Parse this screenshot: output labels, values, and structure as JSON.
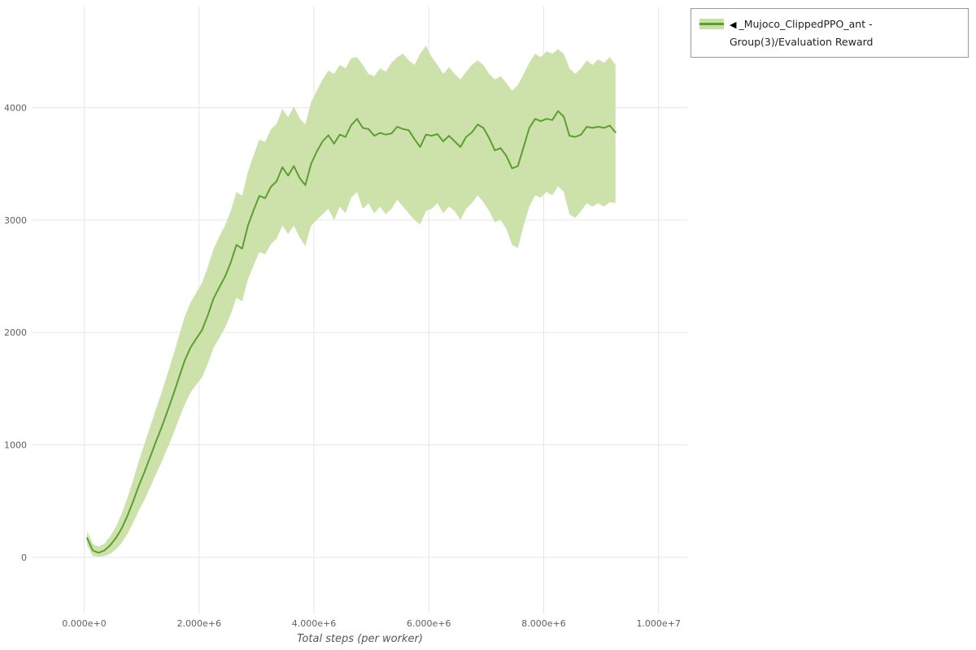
{
  "legend": {
    "collapse_icon": "◀",
    "label": "_Mujoco_ClippedPPO_ant - Group(3)/Evaluation Reward"
  },
  "chart_data": {
    "type": "line",
    "title": "",
    "xlabel": "Total steps (per worker)",
    "ylabel": "",
    "grid": true,
    "legend_position": "top-right-outside",
    "xlim": [
      -900000,
      10500000
    ],
    "ylim": [
      -500,
      4900
    ],
    "x_ticks": [
      {
        "value": 0,
        "label": "0.000e+0"
      },
      {
        "value": 2000000,
        "label": "2.000e+6"
      },
      {
        "value": 4000000,
        "label": "4.000e+6"
      },
      {
        "value": 6000000,
        "label": "6.000e+6"
      },
      {
        "value": 8000000,
        "label": "8.000e+6"
      },
      {
        "value": 10000000,
        "label": "1.000e+7"
      }
    ],
    "y_ticks": [
      {
        "value": 0,
        "label": "0"
      },
      {
        "value": 1000,
        "label": "1000"
      },
      {
        "value": 2000,
        "label": "2000"
      },
      {
        "value": 3000,
        "label": "3000"
      },
      {
        "value": 4000,
        "label": "4000"
      }
    ],
    "colors": {
      "line": "#5d9e33",
      "band": "#c9e0a5",
      "grid": "#e6e6e6",
      "tick_label": "#606060",
      "axis_title": "#555555",
      "legend_border": "#999999"
    },
    "series": [
      {
        "name": "_Mujoco_ClippedPPO_ant - Group(3)/Evaluation Reward",
        "color": "#5d9e33",
        "band_color": "#c9e0a5",
        "x": [
          50000,
          150000,
          250000,
          350000,
          450000,
          550000,
          650000,
          750000,
          850000,
          950000,
          1050000,
          1150000,
          1250000,
          1350000,
          1450000,
          1550000,
          1650000,
          1750000,
          1850000,
          1950000,
          2050000,
          2150000,
          2250000,
          2350000,
          2450000,
          2550000,
          2650000,
          2750000,
          2850000,
          2950000,
          3050000,
          3150000,
          3250000,
          3350000,
          3450000,
          3550000,
          3650000,
          3750000,
          3850000,
          3950000,
          4050000,
          4150000,
          4250000,
          4350000,
          4450000,
          4550000,
          4650000,
          4750000,
          4850000,
          4950000,
          5050000,
          5150000,
          5250000,
          5350000,
          5450000,
          5550000,
          5650000,
          5750000,
          5850000,
          5950000,
          6050000,
          6150000,
          6250000,
          6350000,
          6450000,
          6550000,
          6650000,
          6750000,
          6850000,
          6950000,
          7050000,
          7150000,
          7250000,
          7350000,
          7450000,
          7550000,
          7650000,
          7750000,
          7850000,
          7950000,
          8050000,
          8150000,
          8250000,
          8350000,
          8450000,
          8550000,
          8650000,
          8750000,
          8850000,
          8950000,
          9050000,
          9150000,
          9250000
        ],
        "mean": [
          170,
          60,
          40,
          60,
          105,
          170,
          255,
          365,
          495,
          635,
          760,
          895,
          1030,
          1160,
          1300,
          1445,
          1600,
          1750,
          1865,
          1945,
          2020,
          2150,
          2300,
          2400,
          2495,
          2620,
          2780,
          2745,
          2950,
          3090,
          3215,
          3195,
          3295,
          3345,
          3470,
          3395,
          3480,
          3375,
          3310,
          3500,
          3610,
          3700,
          3755,
          3680,
          3760,
          3740,
          3845,
          3900,
          3820,
          3810,
          3750,
          3775,
          3760,
          3770,
          3830,
          3810,
          3800,
          3720,
          3650,
          3760,
          3750,
          3765,
          3700,
          3750,
          3700,
          3650,
          3740,
          3780,
          3850,
          3820,
          3730,
          3620,
          3640,
          3570,
          3460,
          3480,
          3650,
          3820,
          3900,
          3880,
          3900,
          3890,
          3970,
          3920,
          3750,
          3740,
          3760,
          3830,
          3820,
          3830,
          3820,
          3840,
          3780
        ],
        "lower": [
          110,
          10,
          5,
          10,
          30,
          70,
          125,
          205,
          305,
          415,
          510,
          625,
          740,
          850,
          970,
          1095,
          1230,
          1360,
          1465,
          1535,
          1600,
          1720,
          1860,
          1950,
          2040,
          2160,
          2310,
          2275,
          2470,
          2600,
          2715,
          2695,
          2785,
          2835,
          2950,
          2875,
          2950,
          2845,
          2770,
          2950,
          3000,
          3050,
          3100,
          3000,
          3120,
          3060,
          3200,
          3250,
          3100,
          3150,
          3060,
          3120,
          3050,
          3100,
          3180,
          3120,
          3060,
          3000,
          2960,
          3080,
          3100,
          3150,
          3060,
          3120,
          3080,
          3000,
          3100,
          3150,
          3220,
          3160,
          3080,
          2980,
          3000,
          2920,
          2780,
          2750,
          2950,
          3120,
          3220,
          3200,
          3250,
          3220,
          3300,
          3250,
          3050,
          3020,
          3080,
          3150,
          3120,
          3150,
          3120,
          3160,
          3150
        ],
        "upper": [
          230,
          120,
          95,
          120,
          185,
          270,
          385,
          525,
          685,
          855,
          1010,
          1165,
          1320,
          1470,
          1630,
          1795,
          1970,
          2140,
          2265,
          2355,
          2440,
          2580,
          2740,
          2850,
          2950,
          3080,
          3250,
          3215,
          3430,
          3580,
          3715,
          3695,
          3805,
          3855,
          3990,
          3915,
          4010,
          3905,
          3850,
          4050,
          4150,
          4250,
          4330,
          4300,
          4380,
          4350,
          4440,
          4450,
          4380,
          4300,
          4280,
          4350,
          4320,
          4400,
          4450,
          4480,
          4420,
          4380,
          4480,
          4550,
          4450,
          4380,
          4300,
          4360,
          4300,
          4250,
          4320,
          4380,
          4420,
          4380,
          4300,
          4250,
          4280,
          4220,
          4150,
          4200,
          4300,
          4400,
          4480,
          4450,
          4500,
          4480,
          4520,
          4480,
          4350,
          4300,
          4350,
          4420,
          4380,
          4430,
          4400,
          4450,
          4380
        ]
      }
    ]
  }
}
